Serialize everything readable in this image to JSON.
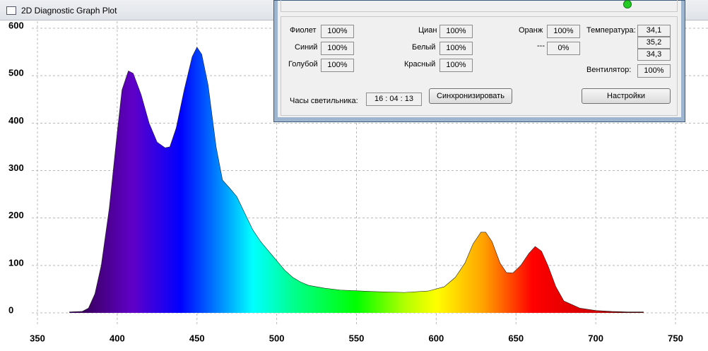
{
  "window": {
    "title": "2D Diagnostic Graph Plot"
  },
  "chart_data": {
    "type": "area",
    "x": [
      370,
      378,
      382,
      386,
      390,
      395,
      400,
      403,
      407,
      410,
      415,
      420,
      425,
      430,
      433,
      437,
      442,
      447,
      450,
      453,
      457,
      462,
      466,
      470,
      475,
      480,
      485,
      490,
      495,
      500,
      505,
      510,
      515,
      520,
      530,
      540,
      560,
      580,
      595,
      605,
      612,
      618,
      623,
      628,
      631,
      635,
      640,
      644,
      648,
      653,
      658,
      662,
      666,
      670,
      675,
      680,
      690,
      700,
      710,
      720,
      730
    ],
    "values": [
      2,
      3,
      10,
      40,
      100,
      220,
      380,
      470,
      510,
      505,
      460,
      400,
      360,
      348,
      350,
      390,
      470,
      540,
      560,
      545,
      480,
      350,
      280,
      265,
      245,
      210,
      175,
      150,
      130,
      110,
      90,
      75,
      65,
      58,
      52,
      48,
      45,
      43,
      46,
      55,
      75,
      105,
      145,
      170,
      170,
      150,
      105,
      85,
      84,
      100,
      125,
      140,
      130,
      100,
      55,
      25,
      10,
      5,
      3,
      2,
      2
    ],
    "xlim": [
      350,
      750
    ],
    "xticks": [
      350,
      400,
      450,
      500,
      550,
      600,
      650,
      700,
      750
    ],
    "ylim": [
      0,
      600
    ],
    "yticks": [
      0,
      100,
      200,
      300,
      400,
      500,
      600
    ],
    "grid": true
  },
  "panel": {
    "channels": [
      {
        "label": "Фиолет",
        "value": "100%"
      },
      {
        "label": "Синий",
        "value": "100%"
      },
      {
        "label": "Голубой",
        "value": "100%"
      },
      {
        "label": "Циан",
        "value": "100%"
      },
      {
        "label": "Белый",
        "value": "100%"
      },
      {
        "label": "Красный",
        "value": "100%"
      },
      {
        "label": "Оранж",
        "value": "100%"
      },
      {
        "label": "---",
        "value": "0%"
      }
    ],
    "temperature": {
      "label": "Температура:",
      "values": [
        "34,1",
        "35,2",
        "34,3"
      ]
    },
    "fan": {
      "label": "Вентилятор:",
      "value": "100%"
    },
    "clock": {
      "label": "Часы светильника:",
      "value": "16 : 04 : 13"
    },
    "buttons": [
      "Синхронизировать",
      "Настройки"
    ]
  }
}
